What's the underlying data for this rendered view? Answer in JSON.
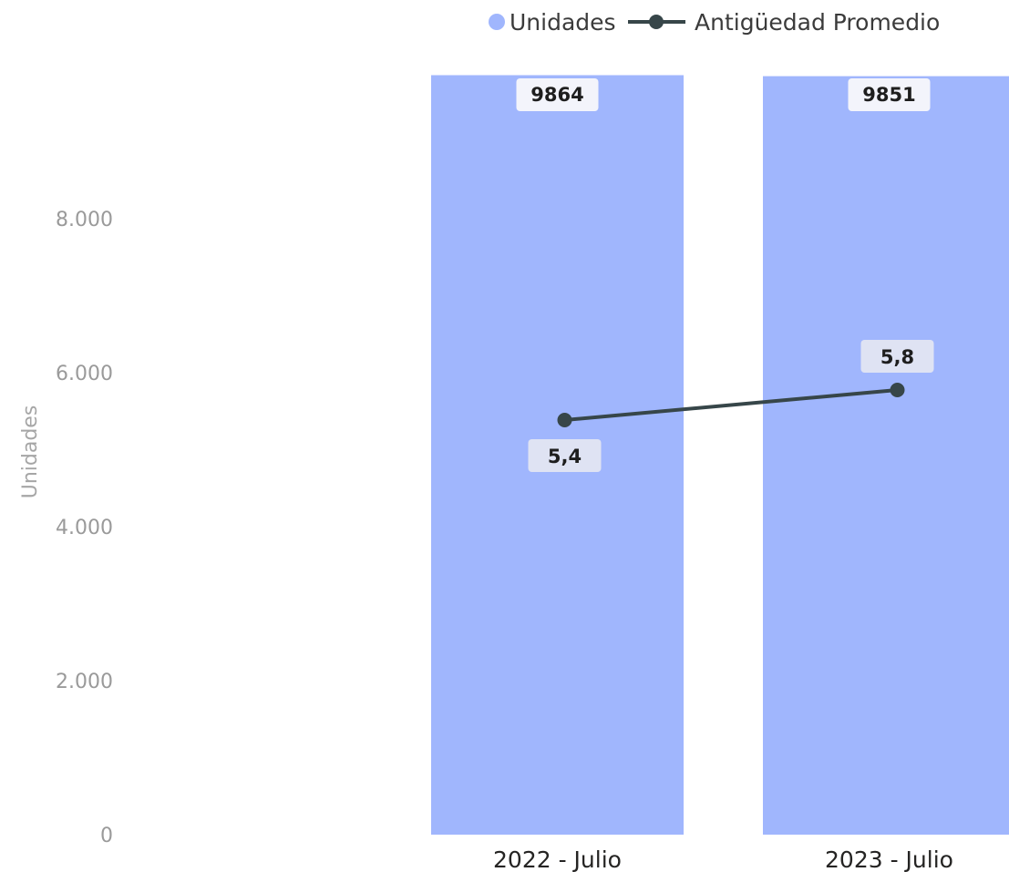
{
  "chart_data": {
    "type": "bar",
    "categories": [
      "2022 - Julio",
      "2023 - Julio"
    ],
    "series": [
      {
        "name": "Unidades",
        "type": "bar",
        "axis": "left",
        "values": [
          9864,
          9851
        ],
        "labels": [
          "9864",
          "9851"
        ],
        "color": "#a0b6fd"
      },
      {
        "name": "Antigüedad Promedio",
        "type": "line",
        "axis": "right",
        "values": [
          5.4,
          5.8
        ],
        "labels": [
          "5,4",
          "5,8"
        ],
        "color": "#374649"
      }
    ],
    "ylabel": "Unidades",
    "y_ticks": [
      "0",
      "2.000",
      "4.000",
      "6.000",
      "8.000"
    ],
    "y_tick_values": [
      0,
      2000,
      4000,
      6000,
      8000
    ],
    "legend_position": "top",
    "grid": false
  }
}
